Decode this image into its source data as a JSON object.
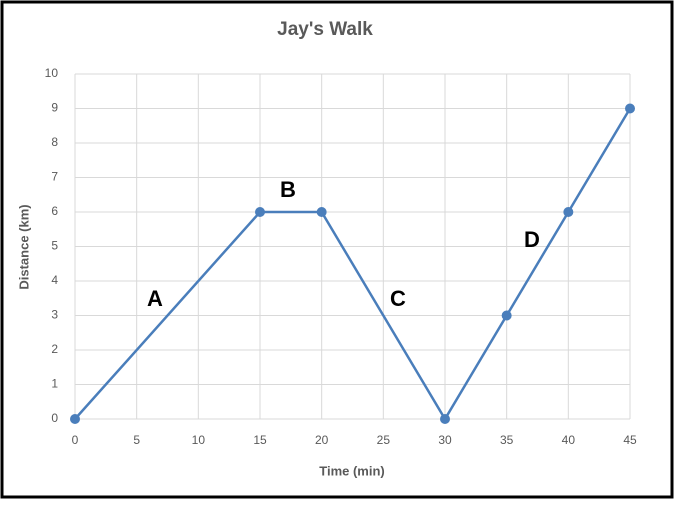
{
  "chart_data": {
    "type": "line",
    "title": "Jay's Walk",
    "x_label": "Time (min)",
    "y_label": "Distance (km)",
    "x": [
      0,
      15,
      20,
      30,
      35,
      40,
      45
    ],
    "series": [
      {
        "color": "#4a7ebb",
        "values": [
          0,
          6,
          6,
          0,
          3,
          6,
          9
        ]
      }
    ],
    "xlim": [
      0,
      45
    ],
    "xticks": [
      0,
      5,
      10,
      15,
      20,
      25,
      30,
      35,
      40,
      45
    ],
    "ylim": [
      0,
      10
    ],
    "yticks": [
      0,
      1,
      2,
      3,
      4,
      5,
      6,
      7,
      8,
      9,
      10
    ],
    "grid": true,
    "annotations": [
      "A",
      "B",
      "C",
      "D"
    ]
  }
}
